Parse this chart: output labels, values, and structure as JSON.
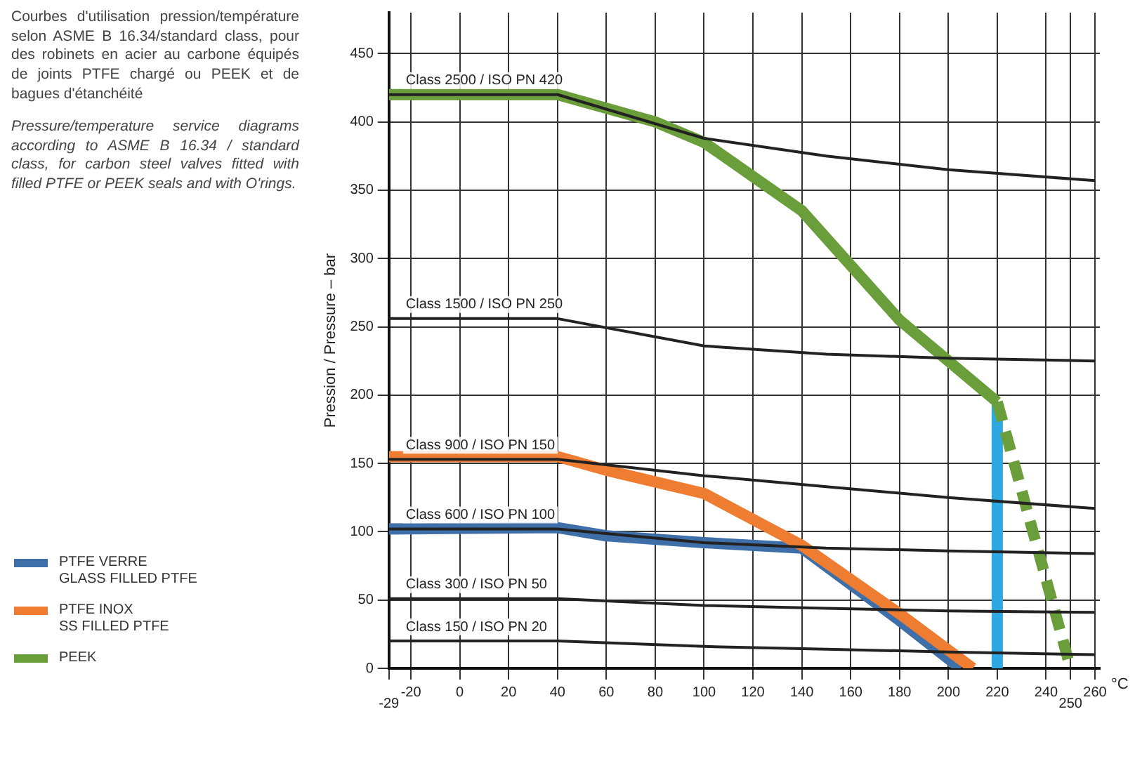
{
  "chart_data": {
    "type": "line",
    "xlabel": "°C",
    "ylabel": "Pression / Pressure – bar",
    "xlim": [
      -29,
      262
    ],
    "ylim": [
      0,
      480
    ],
    "xticks": [
      {
        "value": -29,
        "label": null
      },
      -20,
      0,
      20,
      40,
      60,
      80,
      100,
      120,
      140,
      160,
      180,
      200,
      220,
      240,
      {
        "value": 250,
        "label": null
      },
      260
    ],
    "yticks": [
      0,
      50,
      100,
      150,
      200,
      250,
      300,
      350,
      400,
      450
    ],
    "grid": true,
    "legend": "left",
    "marker": "none",
    "line_style": "solid",
    "annotations": [
      "Courbes d'utilisation pression/température selon ASME B 16.34/standard class, pour des robinets en acier au carbone équipés de joints PTFE chargé ou PEEK et de bagues d'étanchéité",
      "Pressure/temperature service diagrams according to ASME B 16.34 / standard class, for carbon steel valves fitted with filled PTFE or PEEK seals and with O'rings.",
      "-29",
      "250"
    ],
    "series": [
      {
        "name": "Class 2500 / ISO PN 420",
        "color": "#222222",
        "x": [
          -29,
          40,
          100,
          150,
          200,
          260
        ],
        "values": [
          420,
          420,
          388,
          375,
          365,
          357
        ]
      },
      {
        "name": "Class 1500 / ISO PN 250",
        "color": "#222222",
        "x": [
          -29,
          40,
          100,
          150,
          200,
          260
        ],
        "values": [
          256,
          256,
          236,
          230,
          227,
          225
        ]
      },
      {
        "name": "Class 900 / ISO PN 150",
        "color": "#222222",
        "x": [
          -29,
          40,
          100,
          150,
          200,
          260
        ],
        "values": [
          153,
          153,
          141,
          133,
          125,
          117
        ]
      },
      {
        "name": "Class 600 / ISO PN 100",
        "color": "#222222",
        "x": [
          -29,
          40,
          100,
          150,
          200,
          260
        ],
        "values": [
          102,
          102,
          92,
          88,
          86,
          84
        ]
      },
      {
        "name": "Class 300 / ISO PN 50",
        "color": "#222222",
        "x": [
          -29,
          40,
          100,
          150,
          200,
          260
        ],
        "values": [
          51,
          51,
          46,
          44,
          42,
          41
        ]
      },
      {
        "name": "Class 150 / ISO PN 20",
        "color": "#222222",
        "x": [
          -29,
          40,
          100,
          150,
          200,
          260
        ],
        "values": [
          20,
          20,
          16,
          14,
          12,
          10
        ]
      },
      {
        "name": "PEEK",
        "color": "#6a9e3a",
        "x": [
          -29,
          40,
          80,
          100,
          140,
          180,
          220
        ],
        "values": [
          420,
          420,
          400,
          385,
          335,
          255,
          195
        ]
      },
      {
        "color": "#6a9e3a",
        "line_style": "dashed",
        "x": [
          220,
          250
        ],
        "values": [
          195,
          0
        ]
      },
      {
        "name": "PTFE INOX\nSS FILLED PTFE",
        "color": "#ee7d31",
        "x": [
          -29,
          40,
          60,
          100,
          140,
          180,
          210
        ],
        "values": [
          155,
          155,
          145,
          128,
          90,
          40,
          0
        ]
      },
      {
        "name": "PTFE VERRE\nGLASS FILLED PTFE",
        "color": "#3f6fa8",
        "x": [
          -29,
          40,
          60,
          100,
          140,
          180,
          205
        ],
        "values": [
          102,
          103,
          97,
          92,
          88,
          35,
          0
        ]
      },
      {
        "color": "#2ea8e0",
        "x": [
          220,
          220
        ],
        "values": [
          0,
          195
        ]
      }
    ]
  }
}
